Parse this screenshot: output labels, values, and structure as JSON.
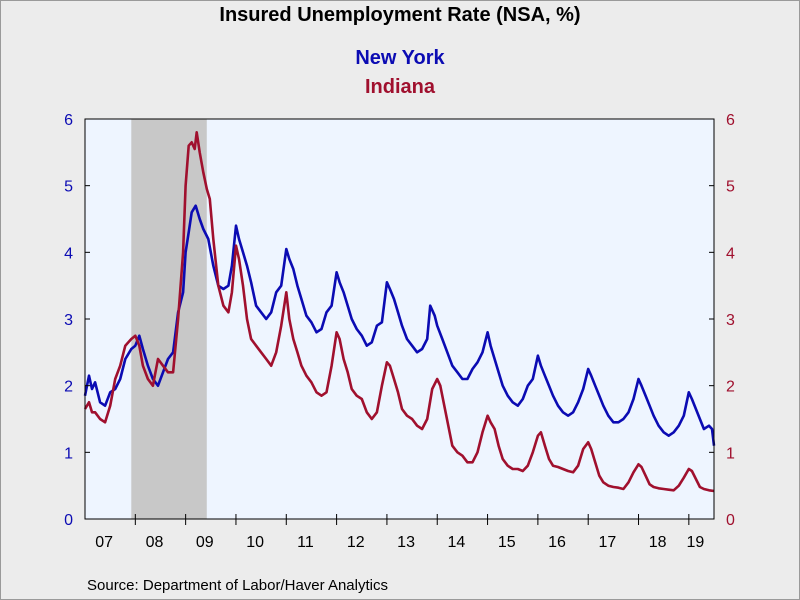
{
  "chart_data": {
    "type": "line",
    "title": "Insured Unemployment Rate (NSA, %)",
    "source": "Source:  Department of Labor/Haver Analytics",
    "x_tick_labels": [
      "07",
      "08",
      "09",
      "10",
      "11",
      "12",
      "13",
      "14",
      "15",
      "16",
      "17",
      "18",
      "19"
    ],
    "x_range": [
      2007.0,
      2019.5
    ],
    "y_left": {
      "ticks": [
        "0",
        "1",
        "2",
        "3",
        "4",
        "5",
        "6"
      ],
      "range": [
        0,
        6
      ],
      "color": "#0b0bb3"
    },
    "y_right": {
      "ticks": [
        "0",
        "1",
        "2",
        "3",
        "4",
        "5",
        "6"
      ],
      "range": [
        0,
        6
      ],
      "color": "#a0102e"
    },
    "grid": false,
    "recession_shade": {
      "start": 2007.92,
      "end": 2009.42
    },
    "colors": {
      "plot_bg": "#eef5ff",
      "shade": "#c8c8c8"
    },
    "series": [
      {
        "name": "New York",
        "color": "#0b0bb3",
        "points": [
          [
            2007.0,
            1.85
          ],
          [
            2007.08,
            2.15
          ],
          [
            2007.14,
            1.95
          ],
          [
            2007.2,
            2.05
          ],
          [
            2007.3,
            1.75
          ],
          [
            2007.4,
            1.7
          ],
          [
            2007.5,
            1.9
          ],
          [
            2007.6,
            1.95
          ],
          [
            2007.7,
            2.1
          ],
          [
            2007.8,
            2.4
          ],
          [
            2007.92,
            2.55
          ],
          [
            2008.0,
            2.6
          ],
          [
            2008.08,
            2.75
          ],
          [
            2008.15,
            2.55
          ],
          [
            2008.25,
            2.3
          ],
          [
            2008.35,
            2.1
          ],
          [
            2008.45,
            2.0
          ],
          [
            2008.55,
            2.2
          ],
          [
            2008.65,
            2.4
          ],
          [
            2008.75,
            2.5
          ],
          [
            2008.85,
            3.1
          ],
          [
            2008.95,
            3.4
          ],
          [
            2009.0,
            4.0
          ],
          [
            2009.06,
            4.3
          ],
          [
            2009.12,
            4.6
          ],
          [
            2009.2,
            4.7
          ],
          [
            2009.28,
            4.5
          ],
          [
            2009.35,
            4.35
          ],
          [
            2009.45,
            4.2
          ],
          [
            2009.55,
            3.8
          ],
          [
            2009.65,
            3.5
          ],
          [
            2009.75,
            3.45
          ],
          [
            2009.85,
            3.5
          ],
          [
            2009.92,
            3.8
          ],
          [
            2010.0,
            4.4
          ],
          [
            2010.06,
            4.2
          ],
          [
            2010.14,
            4.0
          ],
          [
            2010.22,
            3.8
          ],
          [
            2010.3,
            3.55
          ],
          [
            2010.4,
            3.2
          ],
          [
            2010.5,
            3.1
          ],
          [
            2010.6,
            3.0
          ],
          [
            2010.7,
            3.1
          ],
          [
            2010.8,
            3.4
          ],
          [
            2010.9,
            3.5
          ],
          [
            2011.0,
            4.05
          ],
          [
            2011.06,
            3.9
          ],
          [
            2011.14,
            3.75
          ],
          [
            2011.22,
            3.5
          ],
          [
            2011.3,
            3.3
          ],
          [
            2011.4,
            3.05
          ],
          [
            2011.5,
            2.95
          ],
          [
            2011.6,
            2.8
          ],
          [
            2011.7,
            2.85
          ],
          [
            2011.8,
            3.1
          ],
          [
            2011.9,
            3.2
          ],
          [
            2012.0,
            3.7
          ],
          [
            2012.06,
            3.55
          ],
          [
            2012.14,
            3.4
          ],
          [
            2012.22,
            3.2
          ],
          [
            2012.3,
            3.0
          ],
          [
            2012.4,
            2.85
          ],
          [
            2012.5,
            2.75
          ],
          [
            2012.6,
            2.6
          ],
          [
            2012.7,
            2.65
          ],
          [
            2012.8,
            2.9
          ],
          [
            2012.9,
            2.95
          ],
          [
            2013.0,
            3.55
          ],
          [
            2013.06,
            3.45
          ],
          [
            2013.14,
            3.3
          ],
          [
            2013.22,
            3.1
          ],
          [
            2013.3,
            2.9
          ],
          [
            2013.4,
            2.7
          ],
          [
            2013.5,
            2.6
          ],
          [
            2013.6,
            2.5
          ],
          [
            2013.7,
            2.55
          ],
          [
            2013.8,
            2.7
          ],
          [
            2013.86,
            3.2
          ],
          [
            2013.95,
            3.05
          ],
          [
            2014.0,
            2.9
          ],
          [
            2014.1,
            2.7
          ],
          [
            2014.2,
            2.5
          ],
          [
            2014.3,
            2.3
          ],
          [
            2014.4,
            2.2
          ],
          [
            2014.5,
            2.1
          ],
          [
            2014.6,
            2.1
          ],
          [
            2014.7,
            2.25
          ],
          [
            2014.8,
            2.35
          ],
          [
            2014.9,
            2.5
          ],
          [
            2015.0,
            2.8
          ],
          [
            2015.06,
            2.6
          ],
          [
            2015.14,
            2.4
          ],
          [
            2015.22,
            2.2
          ],
          [
            2015.3,
            2.0
          ],
          [
            2015.4,
            1.85
          ],
          [
            2015.5,
            1.75
          ],
          [
            2015.6,
            1.7
          ],
          [
            2015.7,
            1.8
          ],
          [
            2015.8,
            2.0
          ],
          [
            2015.9,
            2.1
          ],
          [
            2016.0,
            2.45
          ],
          [
            2016.06,
            2.3
          ],
          [
            2016.14,
            2.15
          ],
          [
            2016.22,
            2.0
          ],
          [
            2016.3,
            1.85
          ],
          [
            2016.4,
            1.7
          ],
          [
            2016.5,
            1.6
          ],
          [
            2016.6,
            1.55
          ],
          [
            2016.7,
            1.6
          ],
          [
            2016.8,
            1.75
          ],
          [
            2016.9,
            1.95
          ],
          [
            2017.0,
            2.25
          ],
          [
            2017.06,
            2.15
          ],
          [
            2017.14,
            2.0
          ],
          [
            2017.22,
            1.85
          ],
          [
            2017.3,
            1.7
          ],
          [
            2017.4,
            1.55
          ],
          [
            2017.5,
            1.45
          ],
          [
            2017.6,
            1.45
          ],
          [
            2017.7,
            1.5
          ],
          [
            2017.8,
            1.6
          ],
          [
            2017.9,
            1.8
          ],
          [
            2018.0,
            2.1
          ],
          [
            2018.06,
            2.0
          ],
          [
            2018.14,
            1.85
          ],
          [
            2018.22,
            1.7
          ],
          [
            2018.3,
            1.55
          ],
          [
            2018.4,
            1.4
          ],
          [
            2018.5,
            1.3
          ],
          [
            2018.6,
            1.25
          ],
          [
            2018.7,
            1.3
          ],
          [
            2018.8,
            1.4
          ],
          [
            2018.9,
            1.55
          ],
          [
            2019.0,
            1.9
          ],
          [
            2019.06,
            1.8
          ],
          [
            2019.14,
            1.65
          ],
          [
            2019.22,
            1.5
          ],
          [
            2019.3,
            1.35
          ],
          [
            2019.4,
            1.4
          ],
          [
            2019.46,
            1.35
          ],
          [
            2019.5,
            1.1
          ]
        ]
      },
      {
        "name": "Indiana",
        "color": "#a0102e",
        "points": [
          [
            2007.0,
            1.65
          ],
          [
            2007.08,
            1.75
          ],
          [
            2007.14,
            1.6
          ],
          [
            2007.2,
            1.6
          ],
          [
            2007.3,
            1.5
          ],
          [
            2007.4,
            1.45
          ],
          [
            2007.5,
            1.7
          ],
          [
            2007.6,
            2.1
          ],
          [
            2007.7,
            2.3
          ],
          [
            2007.8,
            2.6
          ],
          [
            2007.92,
            2.7
          ],
          [
            2008.0,
            2.75
          ],
          [
            2008.08,
            2.6
          ],
          [
            2008.15,
            2.3
          ],
          [
            2008.25,
            2.1
          ],
          [
            2008.35,
            2.0
          ],
          [
            2008.45,
            2.4
          ],
          [
            2008.55,
            2.3
          ],
          [
            2008.65,
            2.2
          ],
          [
            2008.75,
            2.2
          ],
          [
            2008.85,
            3.0
          ],
          [
            2008.95,
            4.0
          ],
          [
            2009.0,
            5.0
          ],
          [
            2009.06,
            5.6
          ],
          [
            2009.12,
            5.65
          ],
          [
            2009.18,
            5.55
          ],
          [
            2009.22,
            5.8
          ],
          [
            2009.28,
            5.5
          ],
          [
            2009.35,
            5.2
          ],
          [
            2009.42,
            4.95
          ],
          [
            2009.48,
            4.8
          ],
          [
            2009.55,
            4.2
          ],
          [
            2009.65,
            3.5
          ],
          [
            2009.75,
            3.2
          ],
          [
            2009.85,
            3.1
          ],
          [
            2009.92,
            3.4
          ],
          [
            2010.0,
            4.1
          ],
          [
            2010.06,
            3.9
          ],
          [
            2010.14,
            3.5
          ],
          [
            2010.22,
            3.0
          ],
          [
            2010.3,
            2.7
          ],
          [
            2010.4,
            2.6
          ],
          [
            2010.5,
            2.5
          ],
          [
            2010.6,
            2.4
          ],
          [
            2010.7,
            2.3
          ],
          [
            2010.8,
            2.5
          ],
          [
            2010.9,
            2.9
          ],
          [
            2011.0,
            3.4
          ],
          [
            2011.06,
            3.0
          ],
          [
            2011.14,
            2.7
          ],
          [
            2011.22,
            2.5
          ],
          [
            2011.3,
            2.3
          ],
          [
            2011.4,
            2.15
          ],
          [
            2011.5,
            2.05
          ],
          [
            2011.6,
            1.9
          ],
          [
            2011.7,
            1.85
          ],
          [
            2011.8,
            1.9
          ],
          [
            2011.9,
            2.3
          ],
          [
            2012.0,
            2.8
          ],
          [
            2012.06,
            2.7
          ],
          [
            2012.14,
            2.4
          ],
          [
            2012.22,
            2.2
          ],
          [
            2012.3,
            1.95
          ],
          [
            2012.4,
            1.85
          ],
          [
            2012.5,
            1.8
          ],
          [
            2012.6,
            1.6
          ],
          [
            2012.7,
            1.5
          ],
          [
            2012.8,
            1.6
          ],
          [
            2012.9,
            2.0
          ],
          [
            2013.0,
            2.35
          ],
          [
            2013.06,
            2.3
          ],
          [
            2013.14,
            2.1
          ],
          [
            2013.22,
            1.9
          ],
          [
            2013.3,
            1.65
          ],
          [
            2013.4,
            1.55
          ],
          [
            2013.5,
            1.5
          ],
          [
            2013.6,
            1.4
          ],
          [
            2013.7,
            1.35
          ],
          [
            2013.8,
            1.5
          ],
          [
            2013.9,
            1.95
          ],
          [
            2014.0,
            2.1
          ],
          [
            2014.06,
            2.0
          ],
          [
            2014.14,
            1.7
          ],
          [
            2014.22,
            1.4
          ],
          [
            2014.3,
            1.1
          ],
          [
            2014.4,
            1.0
          ],
          [
            2014.5,
            0.95
          ],
          [
            2014.6,
            0.85
          ],
          [
            2014.7,
            0.85
          ],
          [
            2014.8,
            1.0
          ],
          [
            2014.9,
            1.3
          ],
          [
            2015.0,
            1.55
          ],
          [
            2015.06,
            1.45
          ],
          [
            2015.14,
            1.35
          ],
          [
            2015.22,
            1.1
          ],
          [
            2015.3,
            0.9
          ],
          [
            2015.4,
            0.8
          ],
          [
            2015.5,
            0.75
          ],
          [
            2015.6,
            0.75
          ],
          [
            2015.7,
            0.72
          ],
          [
            2015.8,
            0.8
          ],
          [
            2015.9,
            1.0
          ],
          [
            2016.0,
            1.25
          ],
          [
            2016.06,
            1.3
          ],
          [
            2016.14,
            1.1
          ],
          [
            2016.22,
            0.9
          ],
          [
            2016.3,
            0.8
          ],
          [
            2016.4,
            0.78
          ],
          [
            2016.5,
            0.75
          ],
          [
            2016.6,
            0.72
          ],
          [
            2016.7,
            0.7
          ],
          [
            2016.8,
            0.8
          ],
          [
            2016.9,
            1.05
          ],
          [
            2017.0,
            1.15
          ],
          [
            2017.06,
            1.05
          ],
          [
            2017.14,
            0.85
          ],
          [
            2017.22,
            0.65
          ],
          [
            2017.3,
            0.55
          ],
          [
            2017.4,
            0.5
          ],
          [
            2017.5,
            0.48
          ],
          [
            2017.6,
            0.47
          ],
          [
            2017.7,
            0.45
          ],
          [
            2017.8,
            0.55
          ],
          [
            2017.9,
            0.7
          ],
          [
            2018.0,
            0.82
          ],
          [
            2018.06,
            0.78
          ],
          [
            2018.14,
            0.65
          ],
          [
            2018.22,
            0.52
          ],
          [
            2018.3,
            0.48
          ],
          [
            2018.4,
            0.46
          ],
          [
            2018.5,
            0.45
          ],
          [
            2018.6,
            0.44
          ],
          [
            2018.7,
            0.43
          ],
          [
            2018.8,
            0.5
          ],
          [
            2018.9,
            0.62
          ],
          [
            2019.0,
            0.75
          ],
          [
            2019.06,
            0.72
          ],
          [
            2019.14,
            0.6
          ],
          [
            2019.22,
            0.48
          ],
          [
            2019.3,
            0.45
          ],
          [
            2019.4,
            0.43
          ],
          [
            2019.5,
            0.42
          ]
        ]
      }
    ]
  }
}
